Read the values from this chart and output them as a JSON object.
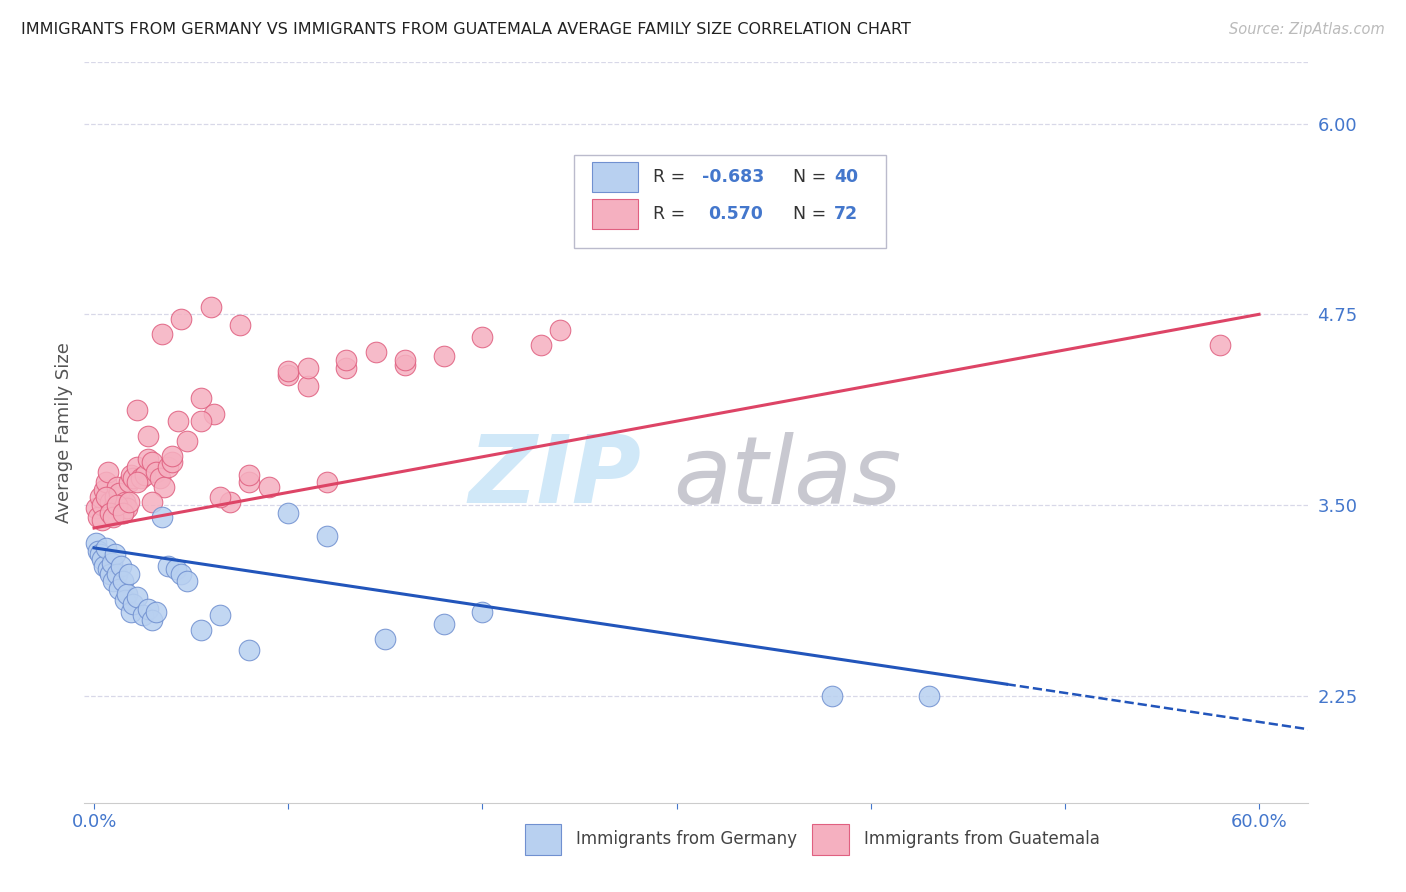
{
  "title": "IMMIGRANTS FROM GERMANY VS IMMIGRANTS FROM GUATEMALA AVERAGE FAMILY SIZE CORRELATION CHART",
  "source_text": "Source: ZipAtlas.com",
  "ylabel": "Average Family Size",
  "xlim": [
    -0.005,
    0.625
  ],
  "ylim": [
    1.55,
    6.4
  ],
  "yticks": [
    2.25,
    3.5,
    4.75,
    6.0
  ],
  "xtick_positions": [
    0.0,
    0.1,
    0.2,
    0.3,
    0.4,
    0.5,
    0.6
  ],
  "xtick_labels": [
    "0.0%",
    "",
    "",
    "",
    "",
    "",
    "60.0%"
  ],
  "background_color": "#ffffff",
  "grid_color": "#d8d8e8",
  "germany_fill": "#b8d0f0",
  "guatemala_fill": "#f5b0c0",
  "germany_edge": "#7090d0",
  "guatemala_edge": "#e06080",
  "trend_germany_color": "#2255bb",
  "trend_guatemala_color": "#dd4466",
  "axis_color": "#4477cc",
  "watermark_zip_color": "#d0e8f8",
  "watermark_atlas_color": "#c8c8d0",
  "germany_x": [
    0.001,
    0.002,
    0.003,
    0.004,
    0.005,
    0.006,
    0.007,
    0.008,
    0.009,
    0.01,
    0.011,
    0.012,
    0.013,
    0.014,
    0.015,
    0.016,
    0.017,
    0.018,
    0.019,
    0.02,
    0.022,
    0.025,
    0.028,
    0.03,
    0.032,
    0.035,
    0.038,
    0.042,
    0.045,
    0.048,
    0.055,
    0.065,
    0.08,
    0.1,
    0.12,
    0.15,
    0.18,
    0.2,
    0.38,
    0.43
  ],
  "germany_y": [
    3.25,
    3.2,
    3.18,
    3.15,
    3.1,
    3.22,
    3.08,
    3.05,
    3.12,
    3.0,
    3.18,
    3.05,
    2.95,
    3.1,
    3.0,
    2.88,
    2.92,
    3.05,
    2.8,
    2.85,
    2.9,
    2.78,
    2.82,
    2.75,
    2.8,
    3.42,
    3.1,
    3.08,
    3.05,
    3.0,
    2.68,
    2.78,
    2.55,
    3.45,
    3.3,
    2.62,
    2.72,
    2.8,
    2.25,
    2.25
  ],
  "guatemala_x": [
    0.001,
    0.002,
    0.003,
    0.004,
    0.005,
    0.006,
    0.007,
    0.008,
    0.009,
    0.01,
    0.011,
    0.012,
    0.013,
    0.014,
    0.015,
    0.016,
    0.017,
    0.018,
    0.019,
    0.02,
    0.022,
    0.024,
    0.026,
    0.028,
    0.03,
    0.032,
    0.034,
    0.036,
    0.038,
    0.04,
    0.043,
    0.048,
    0.055,
    0.062,
    0.07,
    0.08,
    0.09,
    0.1,
    0.11,
    0.12,
    0.13,
    0.145,
    0.16,
    0.18,
    0.2,
    0.24,
    0.022,
    0.03,
    0.04,
    0.055,
    0.065,
    0.08,
    0.1,
    0.13,
    0.004,
    0.006,
    0.008,
    0.01,
    0.012,
    0.015,
    0.018,
    0.022,
    0.028,
    0.035,
    0.045,
    0.06,
    0.075,
    0.11,
    0.16,
    0.23,
    0.3,
    0.58
  ],
  "guatemala_y": [
    3.48,
    3.42,
    3.55,
    3.5,
    3.6,
    3.65,
    3.72,
    3.52,
    3.45,
    3.48,
    3.55,
    3.62,
    3.58,
    3.5,
    3.45,
    3.52,
    3.48,
    3.65,
    3.7,
    3.68,
    3.75,
    3.68,
    3.7,
    3.8,
    3.78,
    3.72,
    3.68,
    3.62,
    3.75,
    3.78,
    4.05,
    3.92,
    4.2,
    4.1,
    3.52,
    3.65,
    3.62,
    4.35,
    4.28,
    3.65,
    4.4,
    4.5,
    4.42,
    4.48,
    4.6,
    4.65,
    4.12,
    3.52,
    3.82,
    4.05,
    3.55,
    3.7,
    4.38,
    4.45,
    3.4,
    3.55,
    3.45,
    3.42,
    3.5,
    3.45,
    3.52,
    3.65,
    3.95,
    4.62,
    4.72,
    4.8,
    4.68,
    4.4,
    4.45,
    4.55,
    5.6,
    4.55
  ],
  "trend_germany_x0": 0.0,
  "trend_germany_y0": 3.22,
  "trend_germany_x1": 0.6,
  "trend_germany_y1": 2.08,
  "trend_germany_solid_end": 0.47,
  "trend_guatemala_x0": 0.0,
  "trend_guatemala_y0": 3.35,
  "trend_guatemala_x1": 0.6,
  "trend_guatemala_y1": 4.75
}
